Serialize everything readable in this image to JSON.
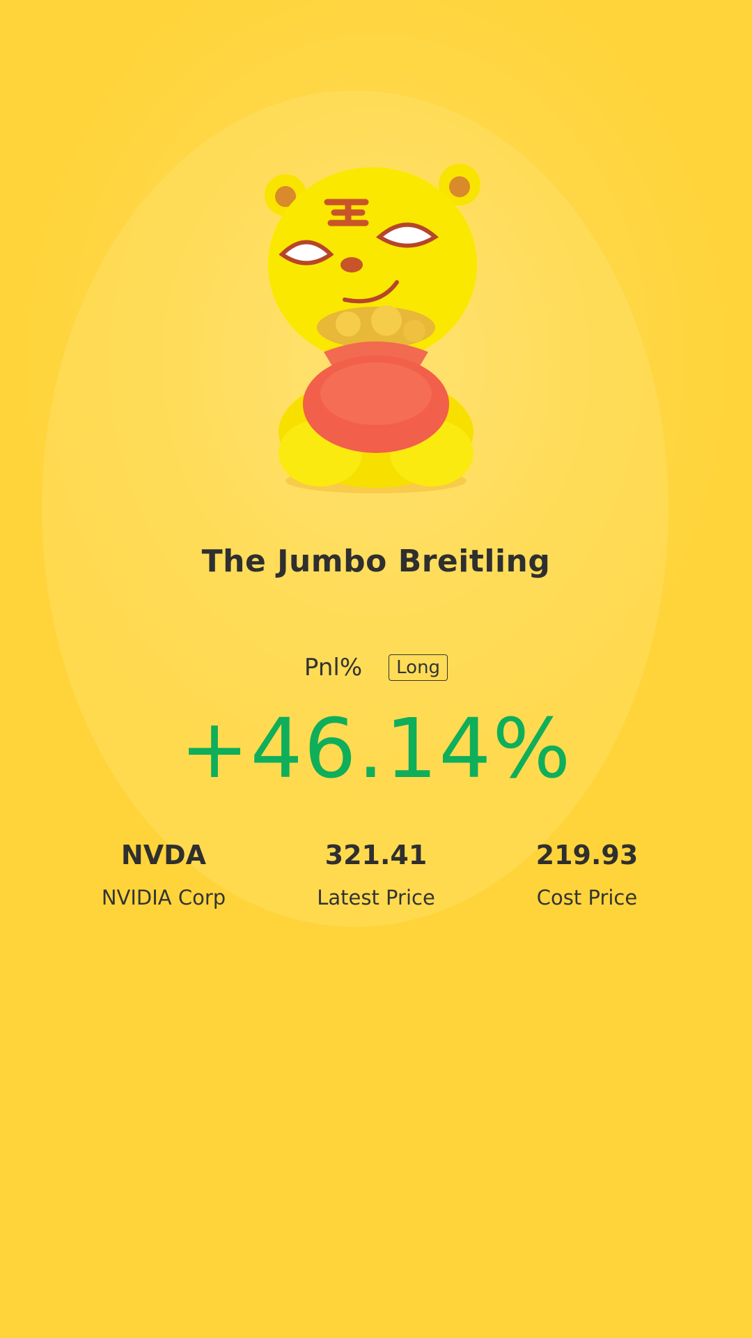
{
  "title": "The Jumbo Breitling",
  "pnl": {
    "label": "Pnl%",
    "direction_tag": "Long",
    "value": "+46.14%",
    "value_color": "#0fae5a"
  },
  "stats": [
    {
      "value": "NVDA",
      "label": "NVIDIA Corp"
    },
    {
      "value": "321.41",
      "label": "Latest Price"
    },
    {
      "value": "219.93",
      "label": "Cost Price"
    }
  ],
  "mascot": "tiger-holding-coin-bag"
}
